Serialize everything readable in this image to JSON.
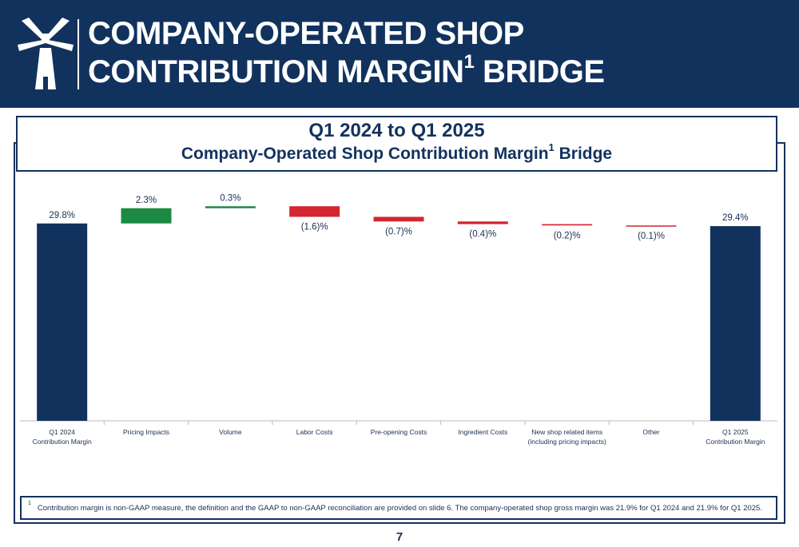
{
  "header": {
    "title_line1": "COMPANY-OPERATED SHOP",
    "title_line2_main": "CONTRIBUTION MARGIN",
    "title_line2_sup": "1",
    "title_line2_end": " BRIDGE",
    "logo_icon": "windmill-icon"
  },
  "subtitle": {
    "line1": "Q1 2024 to Q1 2025",
    "line2_main": "Company-Operated Shop Contribution Margin",
    "line2_sup": "1",
    "line2_end": " Bridge"
  },
  "colors": {
    "navy": "#12325e",
    "increase": "#1d8a43",
    "decrease": "#d3262f"
  },
  "chart_data": {
    "type": "bar",
    "subtype": "waterfall",
    "categories": [
      [
        "Q1 2024",
        "Contribution Margin"
      ],
      [
        "Pricing Impacts"
      ],
      [
        "Volume"
      ],
      [
        "Labor Costs"
      ],
      [
        "Pre-opening Costs"
      ],
      [
        "Ingredient Costs"
      ],
      [
        "New shop related items",
        "(including pricing impacts)"
      ],
      [
        "Other"
      ],
      [
        "Q1 2025",
        "Contribution Margin"
      ]
    ],
    "values": [
      29.8,
      2.3,
      0.3,
      -1.6,
      -0.7,
      -0.4,
      -0.2,
      -0.1,
      29.4
    ],
    "bar_kinds": [
      "total",
      "delta",
      "delta",
      "delta",
      "delta",
      "delta",
      "delta",
      "delta",
      "total"
    ],
    "data_labels": [
      "29.8%",
      "2.3%",
      "0.3%",
      "(1.6)%",
      "(0.7)%",
      "(0.4)%",
      "(0.2)%",
      "(0.1)%",
      "29.4%"
    ],
    "ylim": [
      0,
      34
    ],
    "grid": false,
    "legend": "none",
    "xlabel": "",
    "ylabel": ""
  },
  "footnote": {
    "marker": "1",
    "text": "Contribution margin is non-GAAP measure, the definition and the GAAP to non-GAAP reconciliation are provided on slide 6. The company-operated shop gross margin was 21.9% for Q1 2024 and 21.9% for Q1 2025."
  },
  "page_number": "7"
}
